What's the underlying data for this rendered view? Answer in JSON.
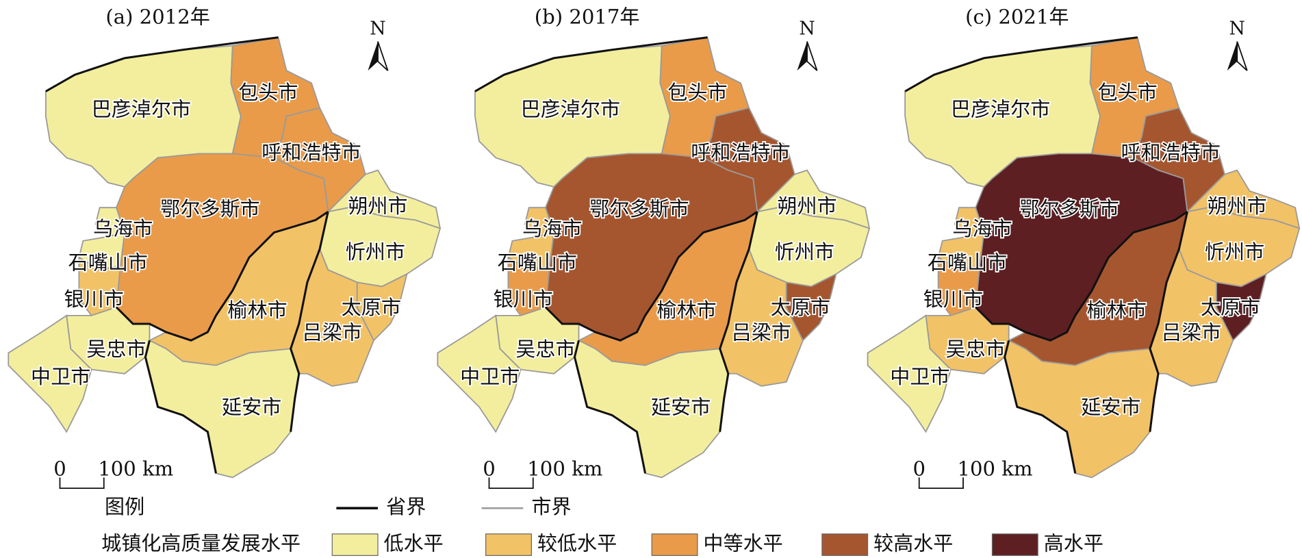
{
  "panels": [
    {
      "title": "(a) 2012年",
      "north": "N",
      "scale": {
        "zero": "0",
        "label": "100 km"
      },
      "cities": [
        {
          "name": "巴彦淖尔市",
          "color": "#f3ee9d"
        },
        {
          "name": "包头市",
          "color": "#e99b4a"
        },
        {
          "name": "呼和浩特市",
          "color": "#e99b4a"
        },
        {
          "name": "鄂尔多斯市",
          "color": "#e99b4a"
        },
        {
          "name": "乌海市",
          "color": "#f3ee9d"
        },
        {
          "name": "石嘴山市",
          "color": "#f3ee9d"
        },
        {
          "name": "银川市",
          "color": "#f2c267"
        },
        {
          "name": "吴忠市",
          "color": "#f3ee9d"
        },
        {
          "name": "中卫市",
          "color": "#f3ee9d"
        },
        {
          "name": "榆林市",
          "color": "#f2c267"
        },
        {
          "name": "延安市",
          "color": "#f3ee9d"
        },
        {
          "name": "朔州市",
          "color": "#f3ee9d"
        },
        {
          "name": "忻州市",
          "color": "#f3ee9d"
        },
        {
          "name": "太原市",
          "color": "#f2c267"
        },
        {
          "name": "吕梁市",
          "color": "#f2c267"
        }
      ]
    },
    {
      "title": "(b) 2017年",
      "north": "N",
      "scale": {
        "zero": "0",
        "label": "100 km"
      },
      "cities": [
        {
          "name": "巴彦淖尔市",
          "color": "#f3ee9d"
        },
        {
          "name": "包头市",
          "color": "#e99b4a"
        },
        {
          "name": "呼和浩特市",
          "color": "#a5562f"
        },
        {
          "name": "鄂尔多斯市",
          "color": "#a5562f"
        },
        {
          "name": "乌海市",
          "color": "#f2c267"
        },
        {
          "name": "石嘴山市",
          "color": "#f2c267"
        },
        {
          "name": "银川市",
          "color": "#e99b4a"
        },
        {
          "name": "吴忠市",
          "color": "#f3ee9d"
        },
        {
          "name": "中卫市",
          "color": "#f3ee9d"
        },
        {
          "name": "榆林市",
          "color": "#e99b4a"
        },
        {
          "name": "延安市",
          "color": "#f3ee9d"
        },
        {
          "name": "朔州市",
          "color": "#f3ee9d"
        },
        {
          "name": "忻州市",
          "color": "#f3ee9d"
        },
        {
          "name": "太原市",
          "color": "#a5562f"
        },
        {
          "name": "吕梁市",
          "color": "#f2c267"
        }
      ]
    },
    {
      "title": "(c) 2021年",
      "north": "N",
      "scale": {
        "zero": "0",
        "label": "100 km"
      },
      "cities": [
        {
          "name": "巴彦淖尔市",
          "color": "#f3ee9d"
        },
        {
          "name": "包头市",
          "color": "#e99b4a"
        },
        {
          "name": "呼和浩特市",
          "color": "#a5562f"
        },
        {
          "name": "鄂尔多斯市",
          "color": "#5e1f22"
        },
        {
          "name": "乌海市",
          "color": "#f2c267"
        },
        {
          "name": "石嘴山市",
          "color": "#f2c267"
        },
        {
          "name": "银川市",
          "color": "#e99b4a"
        },
        {
          "name": "吴忠市",
          "color": "#f2c267"
        },
        {
          "name": "中卫市",
          "color": "#f3ee9d"
        },
        {
          "name": "榆林市",
          "color": "#a5562f"
        },
        {
          "name": "延安市",
          "color": "#f2c267"
        },
        {
          "name": "朔州市",
          "color": "#f2c267"
        },
        {
          "name": "忻州市",
          "color": "#f2c267"
        },
        {
          "name": "太原市",
          "color": "#5e1f22"
        },
        {
          "name": "吕梁市",
          "color": "#f2c267"
        }
      ]
    }
  ],
  "legend": {
    "title": "图例",
    "province_border": "省界",
    "city_border": "市界",
    "index_title": "城镇化高质量发展水平",
    "levels": [
      {
        "label": "低水平",
        "color": "#f3ee9d"
      },
      {
        "label": "较低水平",
        "color": "#f2c267"
      },
      {
        "label": "中等水平",
        "color": "#e99b4a"
      },
      {
        "label": "较高水平",
        "color": "#a5562f"
      },
      {
        "label": "高水平",
        "color": "#5e1f22"
      }
    ]
  }
}
